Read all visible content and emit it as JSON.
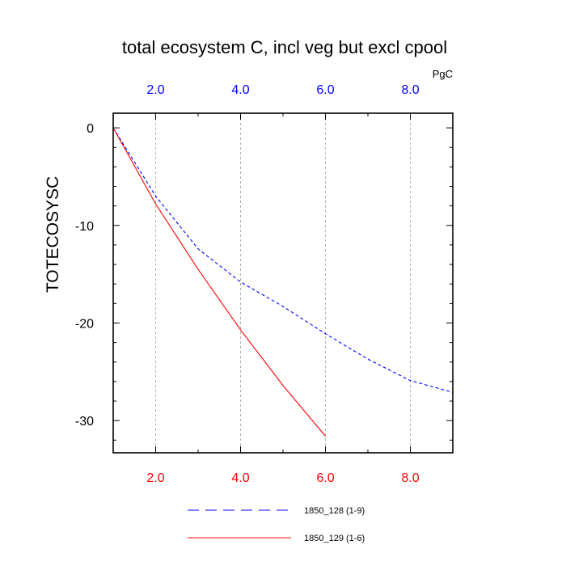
{
  "chart_data": {
    "type": "line",
    "title": "total ecosystem C, incl veg but excl cpool",
    "ylabel": "TOTECOSYSC",
    "units": "PgC",
    "xlim": [
      1,
      9
    ],
    "ylim": [
      -33.3,
      1.5
    ],
    "x_ticks": [
      2,
      4,
      6,
      8
    ],
    "x_tick_labels": [
      "2.0",
      "4.0",
      "6.0",
      "8.0"
    ],
    "y_ticks": [
      0,
      -10,
      -20,
      -30
    ],
    "y_tick_labels": [
      "0",
      "-10",
      "-20",
      "-30"
    ],
    "y_minor_step": 2,
    "grid": "vertical dashed at x ticks",
    "colors": {
      "bottom_axis": "#ff0000",
      "top_axis": "#0000ff",
      "grid": "#b0b0b0"
    },
    "series": [
      {
        "name": "1850_128 (1-9)",
        "color": "#0000ff",
        "dash": "dashed",
        "x": [
          1,
          2,
          3,
          4,
          5,
          6,
          7,
          8,
          9
        ],
        "values": [
          0,
          -7.0,
          -12.4,
          -15.8,
          -18.3,
          -21.1,
          -23.7,
          -25.9,
          -27.1
        ]
      },
      {
        "name": "1850_129 (1-6)",
        "color": "#ff0000",
        "dash": "solid",
        "x": [
          1,
          2,
          3,
          4,
          5,
          6
        ],
        "values": [
          0,
          -7.8,
          -14.5,
          -20.7,
          -26.4,
          -31.6
        ]
      }
    ]
  }
}
